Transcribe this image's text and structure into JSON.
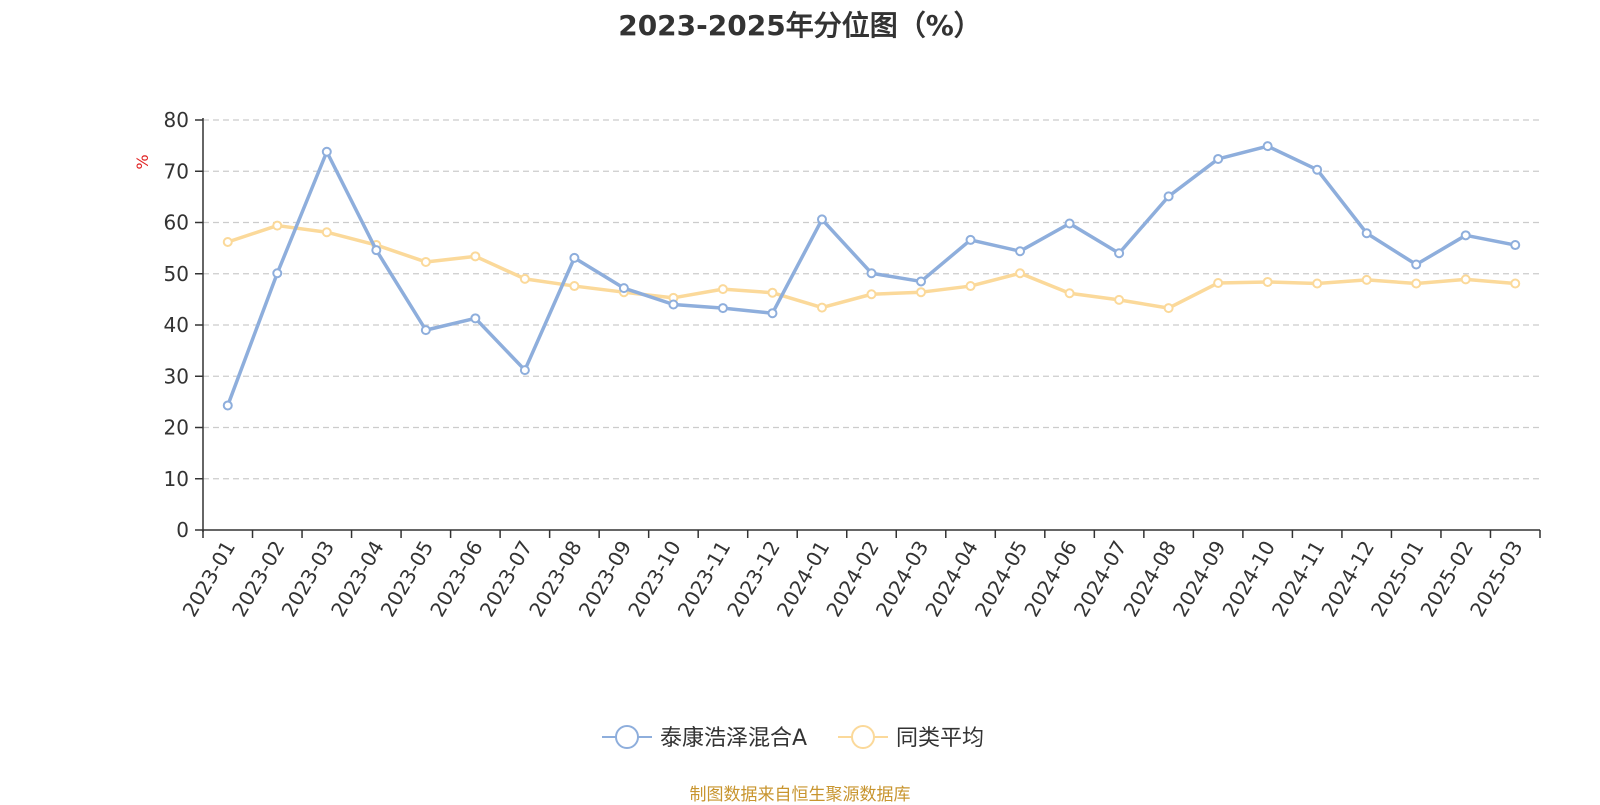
{
  "title": "2023-2025年分位图（%）",
  "source": "制图数据来自恒生聚源数据库",
  "colors": {
    "series_a": "#8eaedc",
    "series_b": "#fbd99a",
    "axis": "#333333",
    "grid": "#cccccc",
    "unit": "#e02020",
    "source": "#c8952f"
  },
  "chart_data": {
    "type": "line",
    "title": "2023-2025年分位图（%）",
    "ylabel": "%",
    "ylim": [
      0,
      80
    ],
    "yticks": [
      0,
      10,
      20,
      30,
      40,
      50,
      60,
      70,
      80
    ],
    "grid": true,
    "legend_position": "bottom",
    "x": [
      "2023-01",
      "2023-02",
      "2023-03",
      "2023-04",
      "2023-05",
      "2023-06",
      "2023-07",
      "2023-08",
      "2023-09",
      "2023-10",
      "2023-11",
      "2023-12",
      "2024-01",
      "2024-02",
      "2024-03",
      "2024-04",
      "2024-05",
      "2024-06",
      "2024-07",
      "2024-08",
      "2024-09",
      "2024-10",
      "2024-11",
      "2024-12",
      "2025-01",
      "2025-02",
      "2025-03"
    ],
    "series": [
      {
        "name": "泰康浩泽混合A",
        "color": "#8eaedc",
        "values": [
          24.3,
          50.1,
          73.8,
          54.6,
          39.0,
          41.3,
          31.2,
          53.1,
          47.2,
          44.0,
          43.3,
          42.3,
          60.6,
          50.1,
          48.5,
          56.6,
          54.4,
          59.8,
          54.0,
          65.1,
          72.4,
          74.9,
          70.3,
          57.9,
          51.8,
          57.5,
          55.6
        ]
      },
      {
        "name": "同类平均",
        "color": "#fbd99a",
        "values": [
          56.2,
          59.4,
          58.1,
          55.6,
          52.3,
          53.4,
          49.0,
          47.6,
          46.4,
          45.3,
          47.0,
          46.3,
          43.4,
          46.0,
          46.4,
          47.6,
          50.1,
          46.2,
          44.9,
          43.3,
          48.2,
          48.4,
          48.1,
          48.8,
          48.1,
          48.9,
          48.1
        ]
      }
    ]
  }
}
